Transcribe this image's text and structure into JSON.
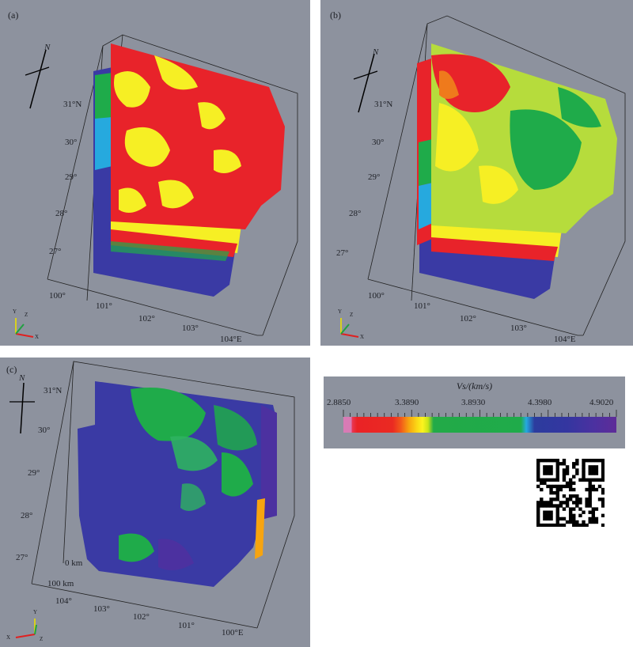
{
  "panels": [
    {
      "label": "(a)",
      "north": "N",
      "lat_labels": [
        "31°N",
        "30°",
        "29°",
        "28°",
        "27°"
      ],
      "lon_labels": [
        "100°",
        "101°",
        "102°",
        "103°",
        "104°E"
      ]
    },
    {
      "label": "(b)",
      "north": "N",
      "lat_labels": [
        "31°N",
        "30°",
        "29°",
        "28°",
        "27°"
      ],
      "lon_labels": [
        "100°",
        "101°",
        "102°",
        "103°",
        "104°E"
      ]
    },
    {
      "label": "(c)",
      "north": "N",
      "lat_labels": [
        "31°N",
        "30°",
        "29°",
        "28°",
        "27°"
      ],
      "lon_labels": [
        "104°",
        "103°",
        "102°",
        "101°",
        "100°E"
      ],
      "depth_labels": [
        "0 km",
        "100 km"
      ]
    }
  ],
  "axes_triad": {
    "x": "X",
    "y": "Y",
    "z": "Z"
  },
  "legend": {
    "title": "Vs/(km/s)",
    "ticks": [
      "2.8850",
      "3.3890",
      "3.8930",
      "4.3980",
      "4.9020"
    ]
  },
  "colors": {
    "background": "#8d929e",
    "red": "#e8232a",
    "yellow": "#f6ef24",
    "green": "#1fab4a",
    "blue": "#3a3aa4",
    "purple": "#5e2c98"
  },
  "qr_code": "qr-code-icon"
}
